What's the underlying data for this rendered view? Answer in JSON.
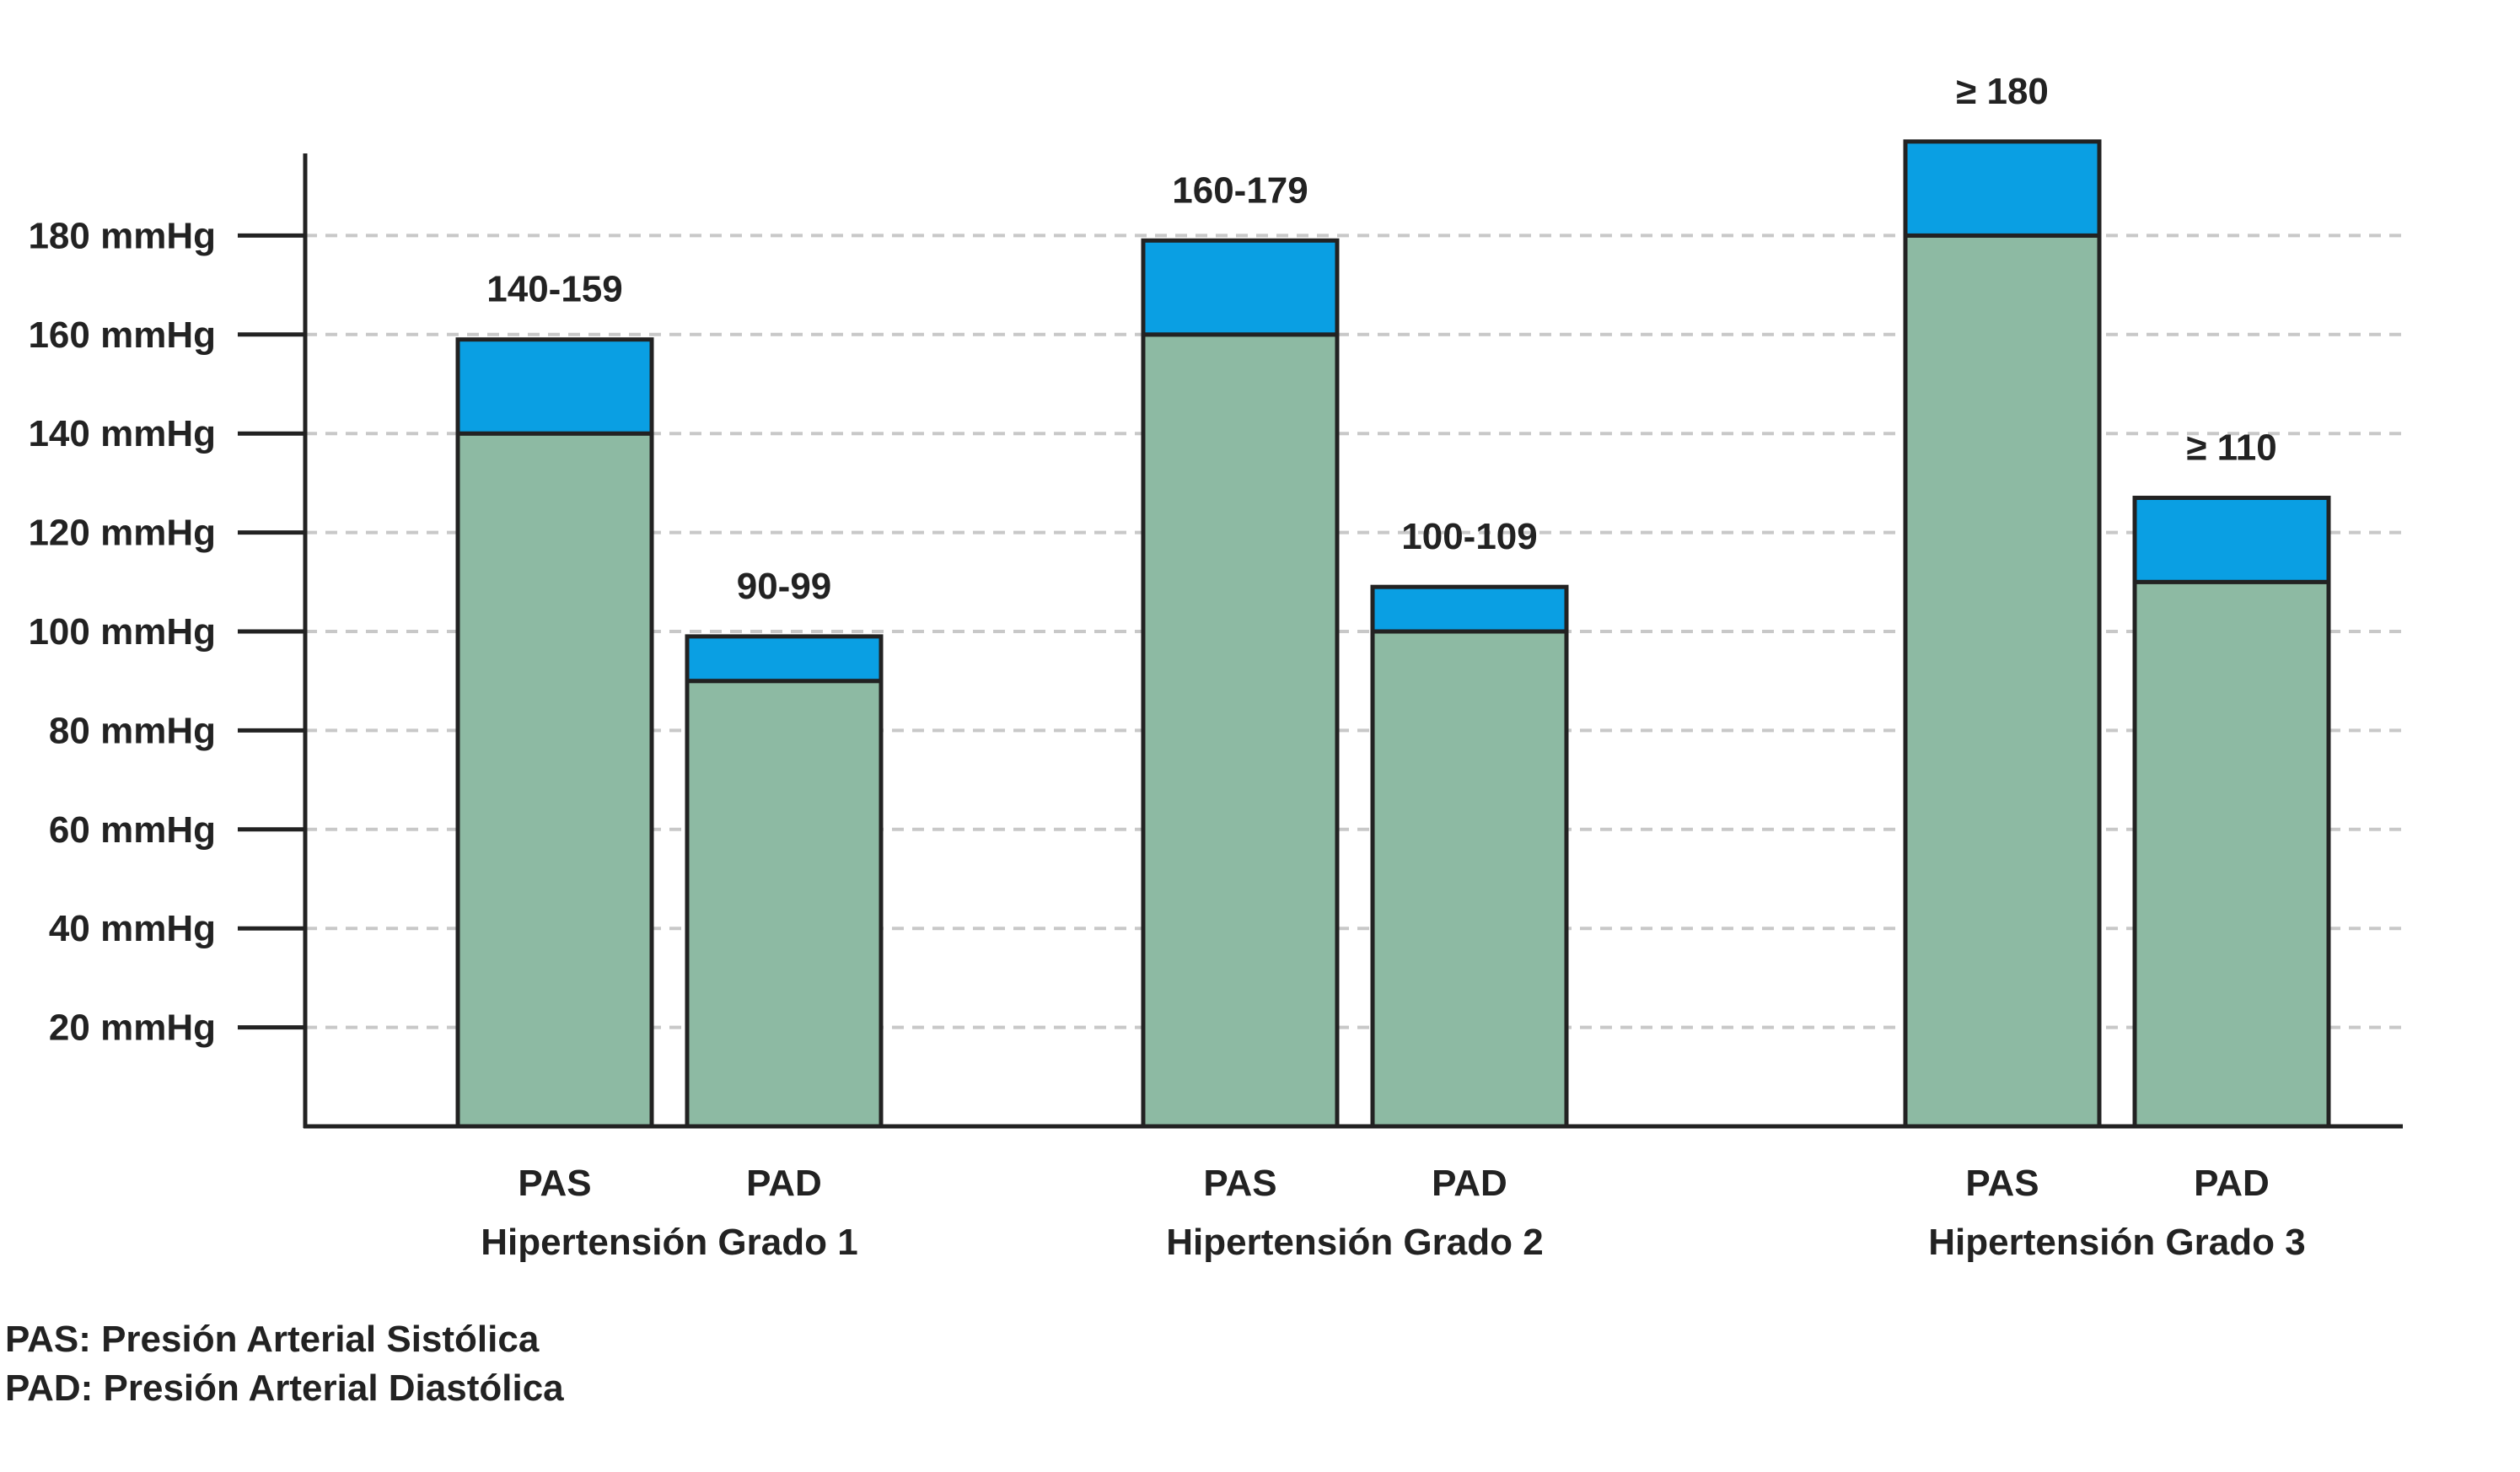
{
  "chart_data": {
    "type": "bar",
    "stacked": true,
    "y_unit": "mmHg",
    "y_ticks": [
      20,
      40,
      60,
      80,
      100,
      120,
      140,
      160,
      180
    ],
    "tick_suffix": " mmHg",
    "ylim": [
      0,
      200
    ],
    "grid": true,
    "groups": [
      {
        "label": "Hipertensión Grado 1",
        "bars": [
          {
            "category": "PAS",
            "base": 140,
            "top": 159,
            "label": "140-159"
          },
          {
            "category": "PAD",
            "base": 90,
            "top": 99,
            "label": "90-99"
          }
        ]
      },
      {
        "label": "Hipertensión Grado 2",
        "bars": [
          {
            "category": "PAS",
            "base": 160,
            "top": 179,
            "label": "160-179"
          },
          {
            "category": "PAD",
            "base": 100,
            "top": 109,
            "label": "100-109"
          }
        ]
      },
      {
        "label": "Hipertensión Grado 3",
        "bars": [
          {
            "category": "PAS",
            "base": 180,
            "top": 199,
            "label": "≥ 180"
          },
          {
            "category": "PAD",
            "base": 110,
            "top": 127,
            "label": "≥ 110"
          }
        ]
      }
    ],
    "colors": {
      "base": "#8dbaa3",
      "range": "#0a9fe3",
      "outline": "#222222",
      "grid": "#c8c8c8"
    }
  },
  "legend": {
    "pas": "PAS: Presión Arterial Sistólica",
    "pad": "PAD: Presión Arterial Diastólica"
  }
}
